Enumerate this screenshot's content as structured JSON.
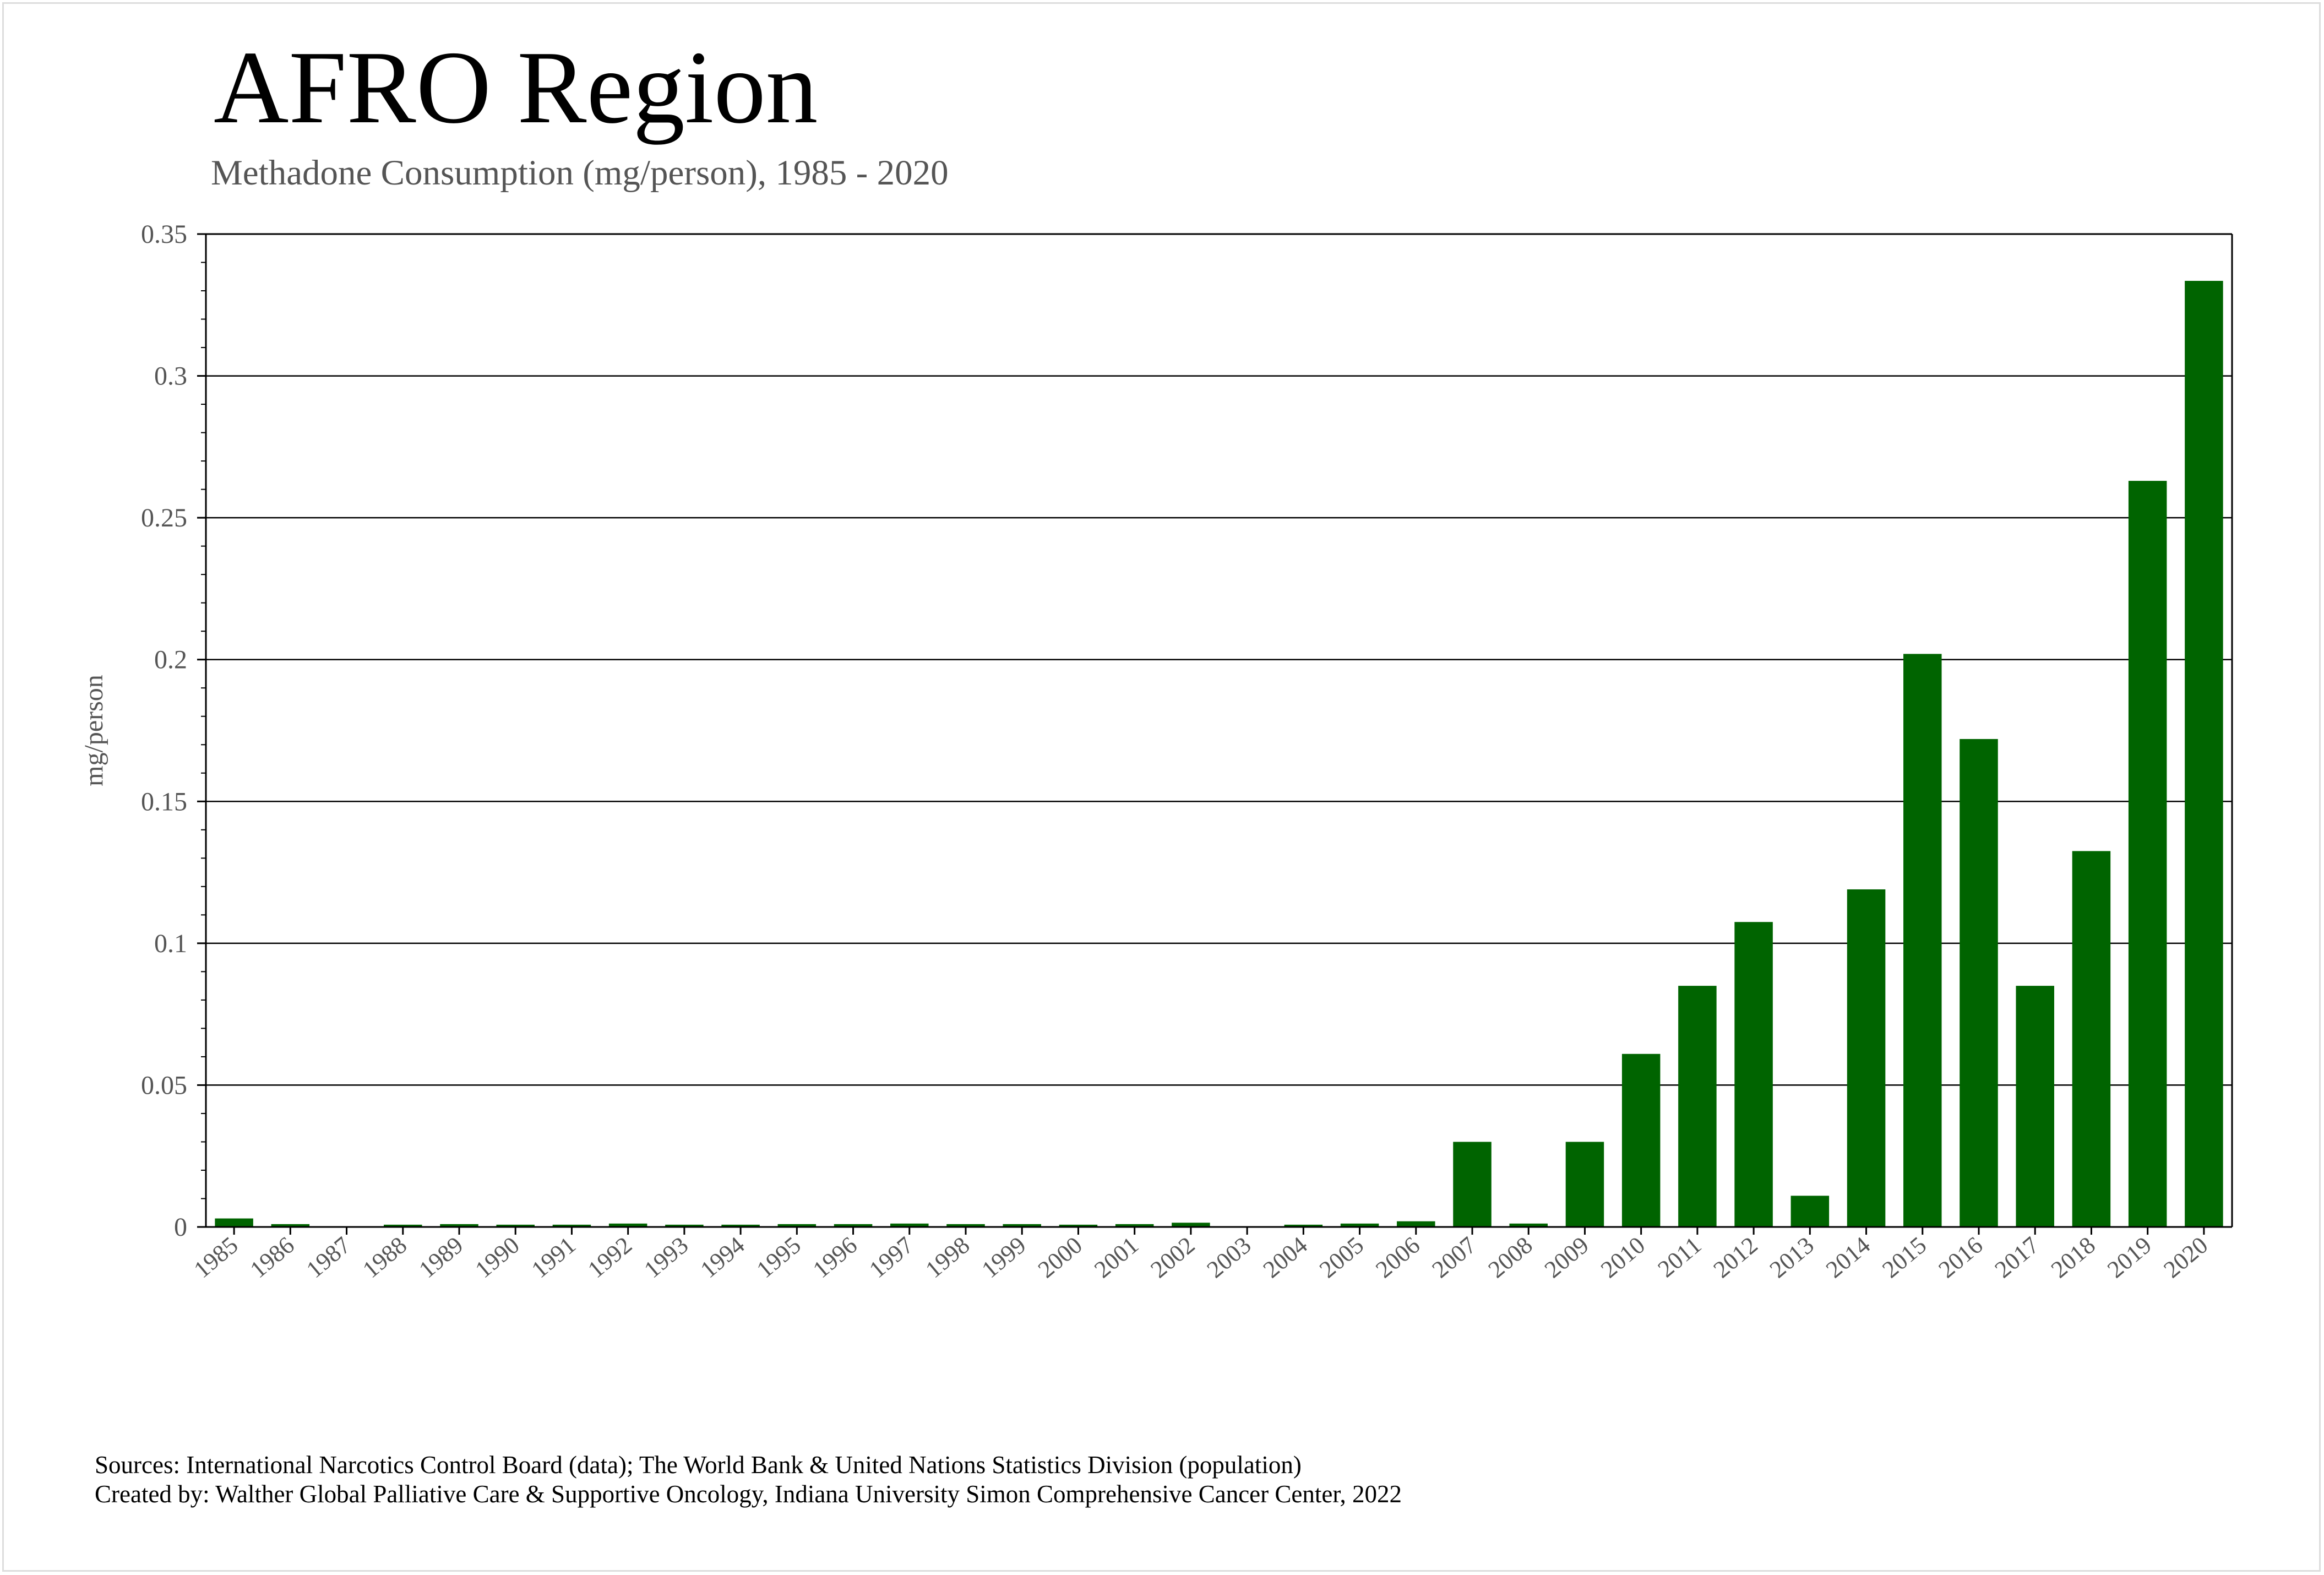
{
  "title": "AFRO Region",
  "subtitle": "Methadone Consumption (mg/person), 1985 - 2020",
  "footer": {
    "sources": "Sources: International Narcotics Control Board (data); The World Bank & United Nations Statistics Division (population)",
    "created_by": "Created by: Walther Global Palliative Care & Supportive Oncology, Indiana University Simon Comprehensive Cancer Center, 2022"
  },
  "colors": {
    "bar": "#006400",
    "grid": "#000000",
    "text": "#555555"
  },
  "chart_data": {
    "type": "bar",
    "title": "AFRO Region",
    "subtitle": "Methadone Consumption (mg/person), 1985 - 2020",
    "xlabel": "",
    "ylabel": "mg/person",
    "ylim": [
      0,
      0.35
    ],
    "yticks": [
      0,
      0.05,
      0.1,
      0.15,
      0.2,
      0.25,
      0.3,
      0.35
    ],
    "ytick_labels": [
      "0",
      "0.05",
      "0.1",
      "0.15",
      "0.2",
      "0.25",
      "0.3",
      "0.35"
    ],
    "grid": true,
    "legend": "none",
    "categories": [
      "1985",
      "1986",
      "1987",
      "1988",
      "1989",
      "1990",
      "1991",
      "1992",
      "1993",
      "1994",
      "1995",
      "1996",
      "1997",
      "1998",
      "1999",
      "2000",
      "2001",
      "2002",
      "2003",
      "2004",
      "2005",
      "2006",
      "2007",
      "2008",
      "2009",
      "2010",
      "2011",
      "2012",
      "2013",
      "2014",
      "2015",
      "2016",
      "2017",
      "2018",
      "2019",
      "2020"
    ],
    "values": [
      0.003,
      0.001,
      0.0002,
      0.0008,
      0.001,
      0.0008,
      0.0008,
      0.0012,
      0.0008,
      0.0008,
      0.001,
      0.001,
      0.0012,
      0.001,
      0.001,
      0.0008,
      0.001,
      0.0015,
      0.0002,
      0.0008,
      0.0012,
      0.002,
      0.03,
      0.0012,
      0.03,
      0.061,
      0.085,
      0.1075,
      0.011,
      0.119,
      0.202,
      0.172,
      0.085,
      0.1325,
      0.263,
      0.3335
    ]
  }
}
